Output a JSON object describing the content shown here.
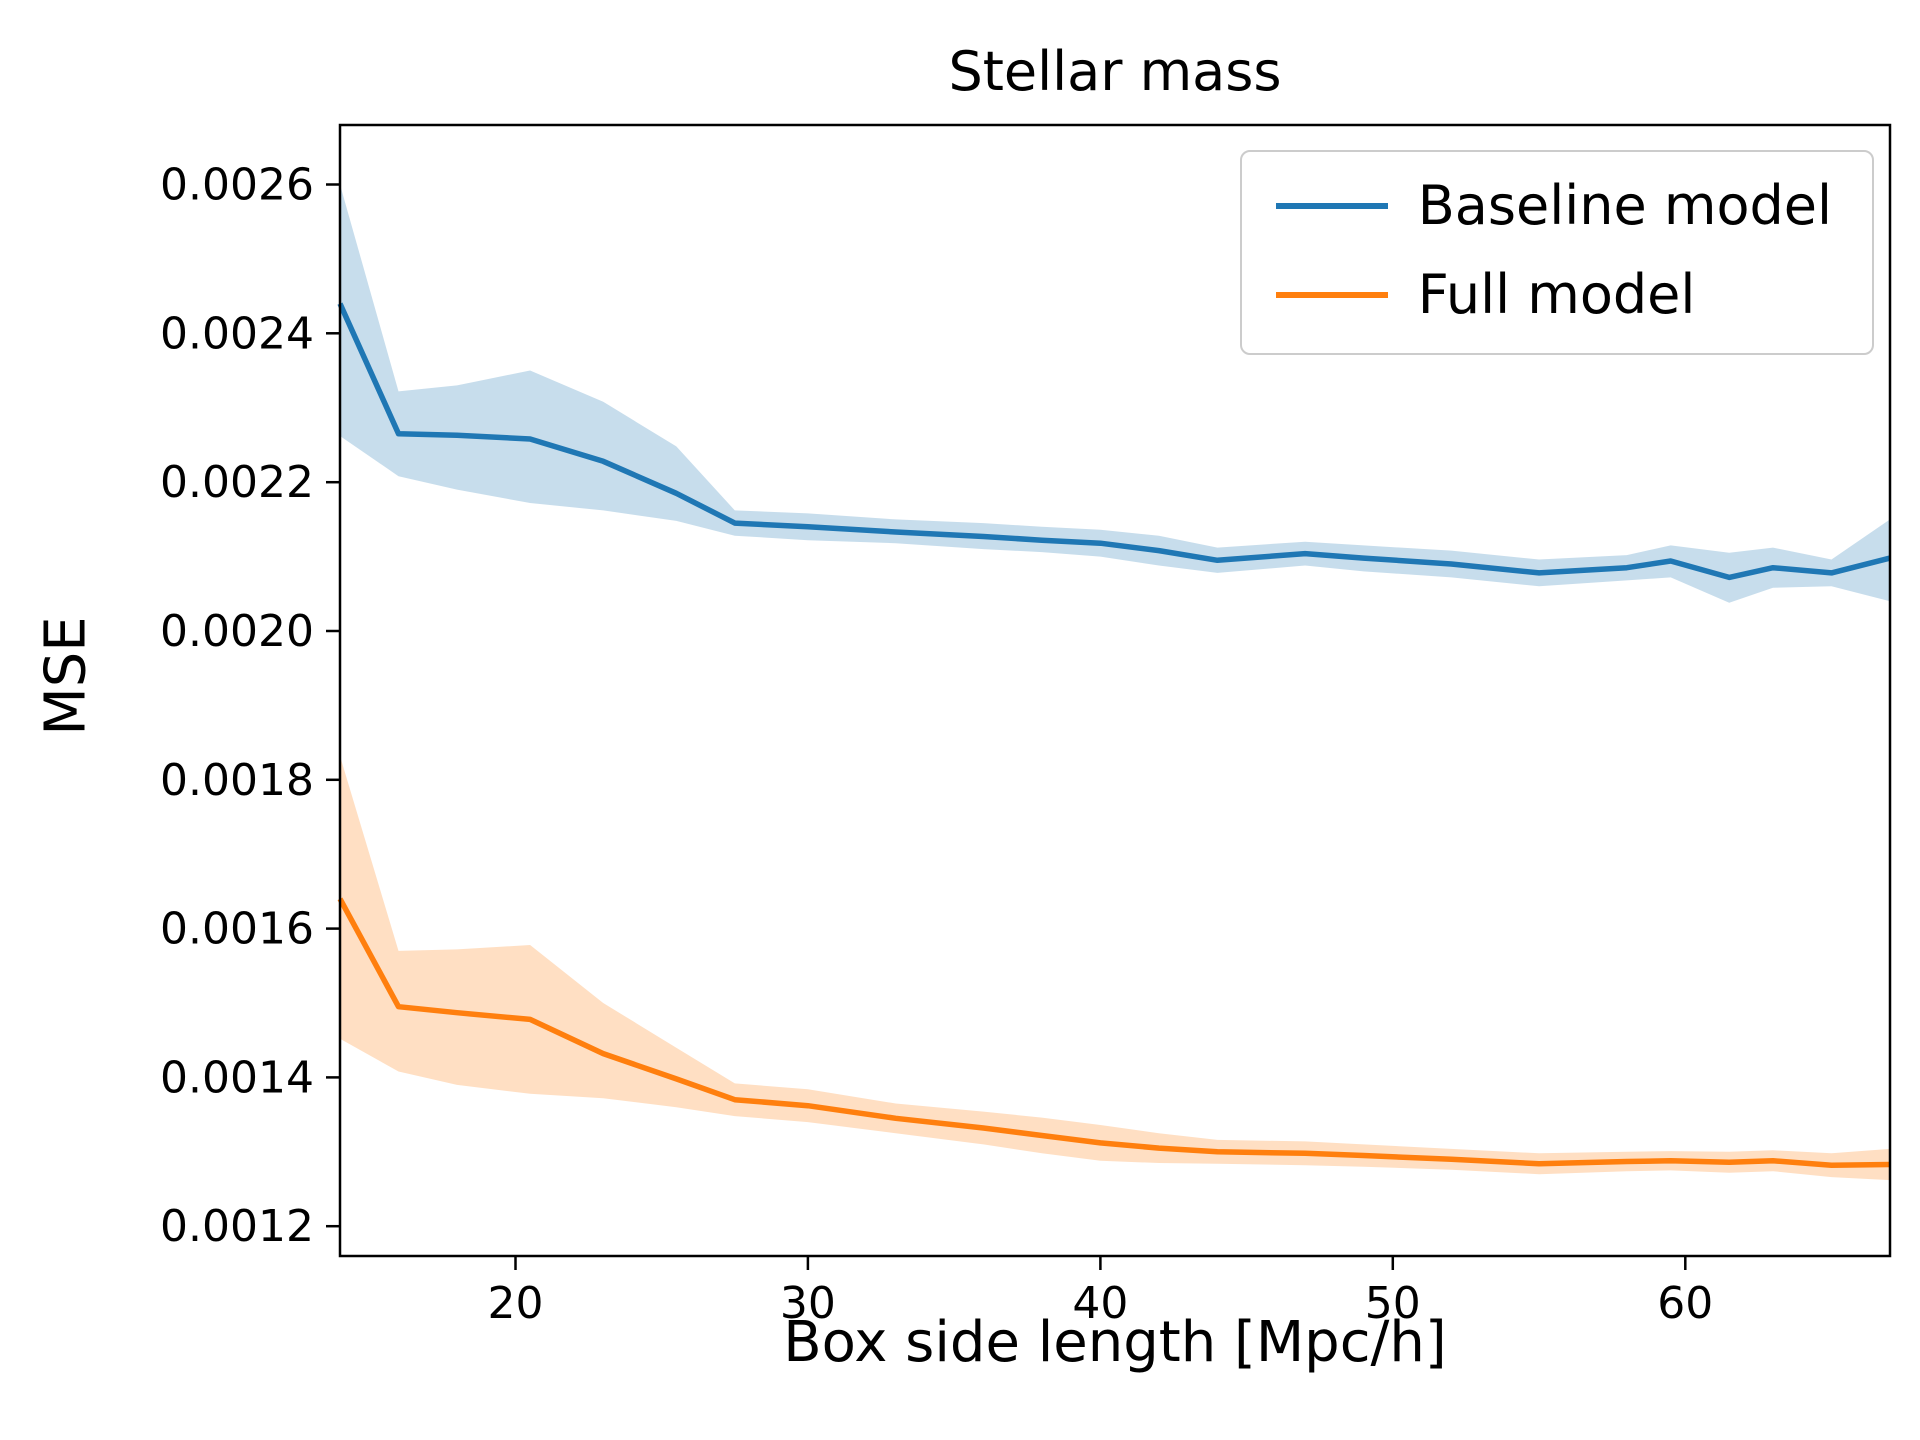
{
  "figure": {
    "title": "Stellar mass",
    "xlabel": "Box side length [Mpc/h]",
    "ylabel": "MSE"
  },
  "legend": {
    "entries": [
      {
        "label": "Baseline model",
        "color": "#1f77b4"
      },
      {
        "label": "Full model",
        "color": "#ff7f0e"
      }
    ]
  },
  "chart_data": {
    "type": "line",
    "title": "Stellar mass",
    "xlabel": "Box side length [Mpc/h]",
    "ylabel": "MSE",
    "xlim": [
      14,
      67
    ],
    "ylim": [
      0.00116,
      0.00268
    ],
    "xticks": [
      20,
      30,
      40,
      50,
      60
    ],
    "yticks": [
      {
        "v": 0.0012,
        "label": "0.0012"
      },
      {
        "v": 0.0014,
        "label": "0.0014"
      },
      {
        "v": 0.0016,
        "label": "0.0016"
      },
      {
        "v": 0.0018,
        "label": "0.0018"
      },
      {
        "v": 0.002,
        "label": "0.0020"
      },
      {
        "v": 0.0022,
        "label": "0.0022"
      },
      {
        "v": 0.0024,
        "label": "0.0024"
      },
      {
        "v": 0.0026,
        "label": "0.0026"
      }
    ],
    "grid": false,
    "legend_position": "upper right",
    "x": [
      14,
      16,
      18,
      20.5,
      23,
      25.5,
      27.5,
      30,
      33,
      36,
      38,
      40,
      42,
      44,
      47,
      49,
      52,
      55,
      58,
      59.5,
      61.5,
      63,
      65,
      67
    ],
    "series": [
      {
        "name": "Baseline model",
        "color": "#1f77b4",
        "band_opacity": 0.25,
        "values": [
          0.00244,
          0.002265,
          0.002263,
          0.002258,
          0.002228,
          0.002185,
          0.002145,
          0.00214,
          0.002133,
          0.002127,
          0.002122,
          0.002118,
          0.002108,
          0.002095,
          0.002104,
          0.002098,
          0.00209,
          0.002078,
          0.002085,
          0.002094,
          0.002072,
          0.002085,
          0.002078,
          0.002098
        ],
        "band_low": [
          0.002262,
          0.002208,
          0.00219,
          0.002172,
          0.002162,
          0.002148,
          0.002128,
          0.002122,
          0.002118,
          0.00211,
          0.002106,
          0.0021,
          0.002088,
          0.002078,
          0.002088,
          0.00208,
          0.002072,
          0.00206,
          0.002068,
          0.002072,
          0.002038,
          0.002058,
          0.00206,
          0.00204
        ],
        "band_high": [
          0.0026,
          0.002322,
          0.00233,
          0.00235,
          0.002308,
          0.002248,
          0.002162,
          0.002158,
          0.00215,
          0.002145,
          0.00214,
          0.002136,
          0.002128,
          0.002112,
          0.00212,
          0.002115,
          0.002108,
          0.002096,
          0.002102,
          0.002115,
          0.002105,
          0.002112,
          0.002096,
          0.00215
        ]
      },
      {
        "name": "Full model",
        "color": "#ff7f0e",
        "band_opacity": 0.25,
        "values": [
          0.00164,
          0.001495,
          0.001487,
          0.001478,
          0.001432,
          0.001398,
          0.00137,
          0.001362,
          0.001345,
          0.001332,
          0.001322,
          0.001312,
          0.001305,
          0.0013,
          0.001298,
          0.001295,
          0.00129,
          0.001284,
          0.001287,
          0.001288,
          0.001286,
          0.001288,
          0.001282,
          0.001283
        ],
        "band_low": [
          0.001452,
          0.001408,
          0.00139,
          0.001378,
          0.001372,
          0.00136,
          0.001348,
          0.00134,
          0.001325,
          0.00131,
          0.001298,
          0.001288,
          0.001285,
          0.001284,
          0.001282,
          0.00128,
          0.001276,
          0.00127,
          0.001274,
          0.001275,
          0.001272,
          0.001274,
          0.001266,
          0.001262
        ],
        "band_high": [
          0.001832,
          0.00157,
          0.001572,
          0.001578,
          0.0015,
          0.00144,
          0.001392,
          0.001384,
          0.001365,
          0.001354,
          0.001346,
          0.001336,
          0.001325,
          0.001316,
          0.001314,
          0.00131,
          0.001304,
          0.001298,
          0.0013,
          0.001301,
          0.0013,
          0.001302,
          0.001298,
          0.001304
        ]
      }
    ]
  }
}
